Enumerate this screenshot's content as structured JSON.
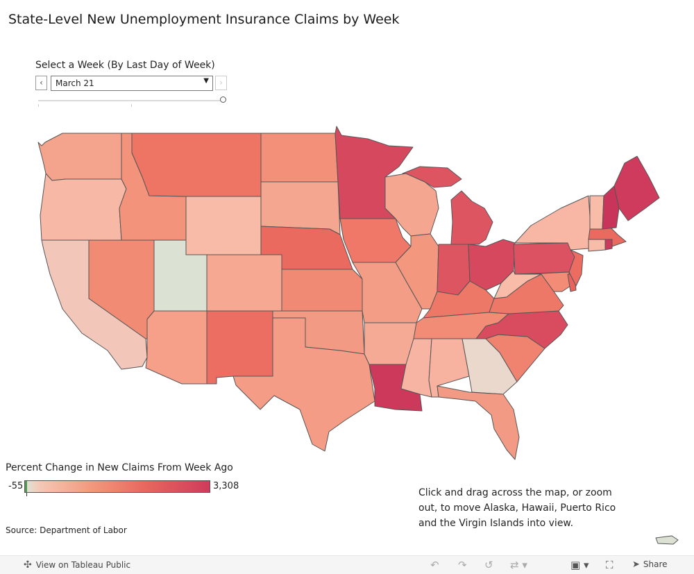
{
  "title": "State-Level New Unemployment Insurance Claims by Week",
  "week_filter": {
    "label": "Select a Week (By Last Day of Week)",
    "selected": "March 21",
    "prev_icon": "chevron-left-icon",
    "next_icon": "chevron-right-icon"
  },
  "legend": {
    "title": "Percent Change in New Claims From Week Ago",
    "min_label": "-55",
    "max_label": "3,308",
    "colors": {
      "min": "#dde5d8",
      "low": "#f4c8b6",
      "mid": "#f39a80",
      "high": "#e8675e",
      "max": "#cf3b5c",
      "negative": "#4e9b56"
    }
  },
  "note": "Click and drag across the map, or zoom out, to move Alaska, Hawaii, Puerto Rico and the Virgin Islands into view.",
  "source": "Source: Department of Labor",
  "map": {
    "state_colors": {
      "WA": "#f4a48c",
      "OR": "#f8b8a6",
      "CA": "#f2c6b8",
      "ID": "#f3937b",
      "NV": "#f18b74",
      "MT": "#ee7564",
      "WY": "#f8bba8",
      "UT": "#dbe2d4",
      "AZ": "#f6a08a",
      "CO": "#f6a892",
      "NM": "#ec6d62",
      "ND": "#f3907a",
      "SD": "#f5a690",
      "NE": "#ea6a60",
      "KS": "#f18a74",
      "OK": "#f39a84",
      "TX": "#f49c85",
      "MN": "#d6485e",
      "IA": "#ef7868",
      "MO": "#f39c86",
      "AR": "#f5aa96",
      "LA": "#cd395a",
      "WI": "#f5a690",
      "IL": "#f3987f",
      "MI": "#de5562",
      "IN": "#de5562",
      "OH": "#d6485e",
      "KY": "#ee7868",
      "TN": "#f28c76",
      "MS": "#f7b4a2",
      "AL": "#f7b2a0",
      "GA": "#ebd8cc",
      "FL": "#f39a84",
      "SC": "#f08270",
      "NC": "#d94c5f",
      "VA": "#ee7868",
      "WV": "#f8bca9",
      "PA": "#dc5262",
      "NY": "#f8b6a4",
      "NJ": "#ec6c62",
      "DE": "#e8625e",
      "MD": "#f28c76",
      "CT": "#f8bca9",
      "RI": "#cd395a",
      "MA": "#ea6a60",
      "VT": "#f8bca9",
      "NH": "#c9345a",
      "ME": "#cf3b5c",
      "PR": "#dbe2d4"
    }
  },
  "footer": {
    "view_link": "View on Tableau Public",
    "share_label": "Share",
    "icons": [
      "undo-icon",
      "redo-icon",
      "revert-icon",
      "refresh-icon",
      "download-icon",
      "fullscreen-icon",
      "share-icon"
    ]
  }
}
